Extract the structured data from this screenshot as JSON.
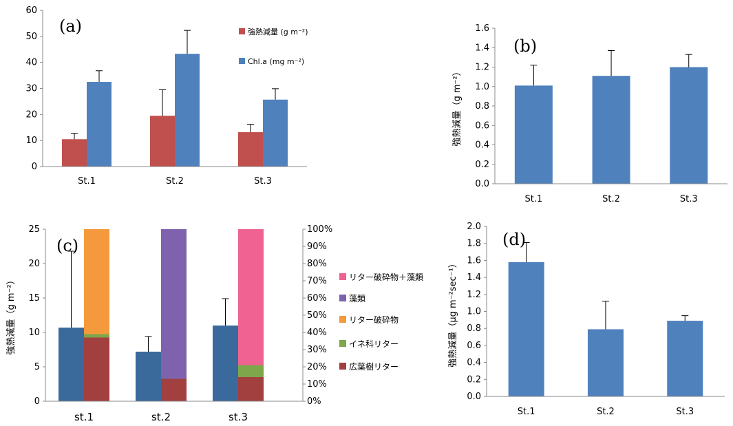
{
  "chart_data": [
    {
      "panel": "(a)",
      "type": "bar",
      "categories": [
        "St.1",
        "St.2",
        "St.3"
      ],
      "ylim": [
        0,
        60
      ],
      "yticks": [
        0,
        10,
        20,
        30,
        40,
        50,
        60
      ],
      "legend_position": "top-right",
      "series": [
        {
          "name": "強熱減量 (g m⁻²)",
          "color": "#C0504D",
          "values": [
            10.5,
            19.5,
            13.2
          ],
          "errors": [
            2.3,
            10.0,
            3.0
          ]
        },
        {
          "name": "Chl.a (mg m⁻²)",
          "color": "#4F81BD",
          "values": [
            32.5,
            43.3,
            25.7
          ],
          "errors": [
            4.3,
            9.0,
            4.2
          ]
        }
      ]
    },
    {
      "panel": "(b)",
      "type": "bar",
      "categories": [
        "St.1",
        "St.2",
        "St.3"
      ],
      "ylabel": "強熱減量（g m⁻²）",
      "ylim": [
        0,
        1.6
      ],
      "yticks": [
        "0.0",
        "0.2",
        "0.4",
        "0.6",
        "0.8",
        "1.0",
        "1.2",
        "1.4",
        "1.6"
      ],
      "series": [
        {
          "name": "",
          "color": "#4F81BD",
          "values": [
            1.01,
            1.11,
            1.2
          ],
          "errors": [
            0.21,
            0.26,
            0.13
          ]
        }
      ]
    },
    {
      "panel": "(c)",
      "type": "bar",
      "categories": [
        "st.1",
        "st.2",
        "st.3"
      ],
      "ylabel": "強熱減量（g m⁻²）",
      "ylim": [
        0,
        25
      ],
      "yticks": [
        0,
        5,
        10,
        15,
        20,
        25
      ],
      "y2lim": [
        0,
        100
      ],
      "y2ticks": [
        "0%",
        "10%",
        "20%",
        "30%",
        "40%",
        "50%",
        "60%",
        "70%",
        "80%",
        "90%",
        "100%"
      ],
      "legend_position": "right",
      "totals": {
        "color": "#3A6A9C",
        "values": [
          10.7,
          7.2,
          11.0
        ],
        "errors": [
          11.1,
          2.2,
          3.9
        ]
      },
      "composition_percent": [
        {
          "name": "広葉樹リター",
          "color": "#A23F3F",
          "values": [
            37,
            13,
            14
          ]
        },
        {
          "name": "イネ科リター",
          "color": "#7EA64B",
          "values": [
            2,
            0,
            7
          ]
        },
        {
          "name": "リター破砕物",
          "color": "#F59A3C",
          "values": [
            61,
            0,
            0
          ]
        },
        {
          "name": "藻類",
          "color": "#7E62AD",
          "values": [
            0,
            87,
            0
          ]
        },
        {
          "name": "リター破砕物＋藻類",
          "color": "#F06292",
          "values": [
            0,
            0,
            79
          ]
        }
      ]
    },
    {
      "panel": "(d)",
      "type": "bar",
      "categories": [
        "St.1",
        "St.2",
        "St.3"
      ],
      "ylabel": "強熱減量（μg m⁻²sec⁻¹）",
      "ylim": [
        0,
        2.0
      ],
      "yticks": [
        "0.0",
        "0.2",
        "0.4",
        "0.6",
        "0.8",
        "1.0",
        "1.2",
        "1.4",
        "1.6",
        "1.8",
        "2.0"
      ],
      "series": [
        {
          "name": "",
          "color": "#4F81BD",
          "values": [
            1.58,
            0.79,
            0.89
          ],
          "errors": [
            0.23,
            0.33,
            0.06
          ]
        }
      ]
    }
  ]
}
